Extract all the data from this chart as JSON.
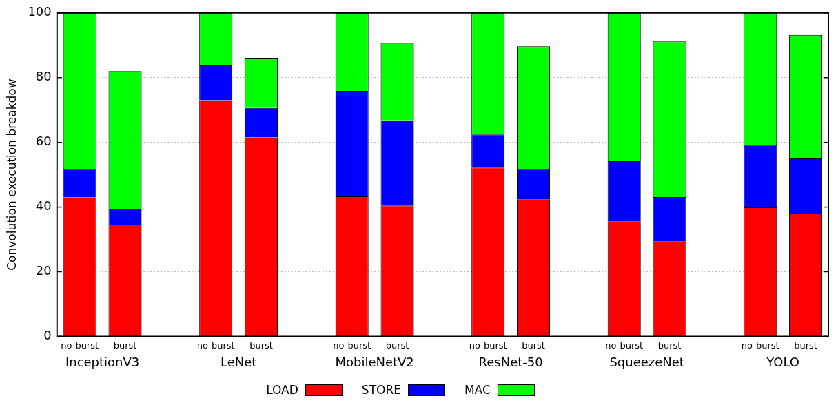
{
  "chart_data": {
    "type": "bar",
    "stacked": true,
    "ylabel": "Convolution execution breakdow",
    "categories": [
      "no-burst",
      "burst",
      null,
      "no-burst",
      "burst",
      null,
      "no-burst",
      "burst",
      null,
      "no-burst",
      "burst",
      null,
      "no-burst",
      "burst",
      null,
      "no-burst",
      "burst"
    ],
    "series": [
      {
        "name": "LOAD",
        "color": "#ff0000",
        "values": [
          43,
          34.6,
          null,
          73,
          61.5,
          null,
          43.3,
          40.5,
          null,
          52.2,
          42.4,
          null,
          35.6,
          29.4,
          null,
          39.9,
          38
        ]
      },
      {
        "name": "STORE",
        "color": "#0000ff",
        "values": [
          8.8,
          4.9,
          null,
          10.8,
          9.1,
          null,
          32.6,
          26.3,
          null,
          10.2,
          9.4,
          null,
          18.6,
          13.7,
          null,
          19.3,
          17
        ]
      },
      {
        "name": "MAC",
        "color": "#00ff00",
        "values": [
          48.2,
          42.5,
          null,
          16.2,
          15.5,
          null,
          24.1,
          23.9,
          null,
          37.6,
          37.9,
          null,
          45.8,
          48.1,
          null,
          40.8,
          38.2
        ]
      }
    ],
    "ylim": [
      0,
      100
    ],
    "yticks": [
      0,
      20,
      40,
      60,
      80,
      100
    ],
    "grid": "y",
    "legend": "bottom",
    "annotations": [
      "InceptionV3",
      "LeNet",
      "MobileNetV2",
      "ResNet-50",
      "SqueezeNet",
      "YOLO"
    ]
  }
}
